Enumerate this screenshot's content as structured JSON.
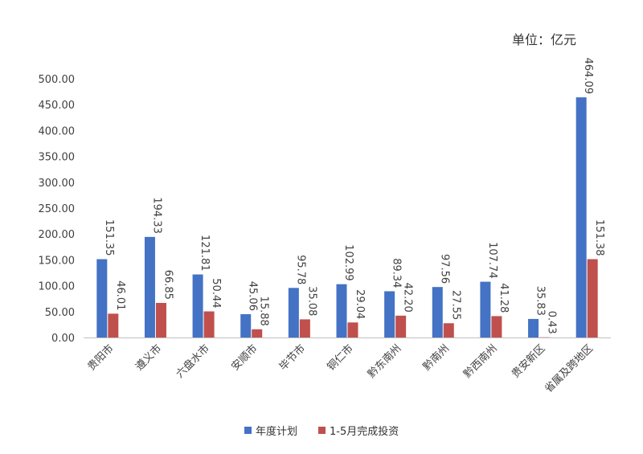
{
  "unit_label": "单位：亿元",
  "chart_data": {
    "type": "bar",
    "title": "",
    "xlabel": "",
    "ylabel": "",
    "ylim": [
      0,
      500
    ],
    "yticks": [
      "0.00",
      "50.00",
      "100.00",
      "150.00",
      "200.00",
      "250.00",
      "300.00",
      "350.00",
      "400.00",
      "450.00",
      "500.00"
    ],
    "categories": [
      "贵阳市",
      "遵义市",
      "六盘水市",
      "安顺市",
      "毕节市",
      "铜仁市",
      "黔东南州",
      "黔南州",
      "黔西南州",
      "贵安新区",
      "省属及跨地区"
    ],
    "series": [
      {
        "name": "年度计划",
        "color": "#4472C4",
        "values": [
          151.35,
          194.33,
          121.81,
          45.06,
          95.78,
          102.99,
          89.34,
          97.56,
          107.74,
          35.83,
          464.09
        ]
      },
      {
        "name": "1-5月完成投资",
        "color": "#C0504D",
        "values": [
          46.01,
          66.85,
          50.44,
          15.88,
          35.08,
          29.04,
          42.2,
          27.55,
          41.28,
          0.43,
          151.38
        ]
      }
    ],
    "grid": false,
    "legend_position": "bottom"
  }
}
